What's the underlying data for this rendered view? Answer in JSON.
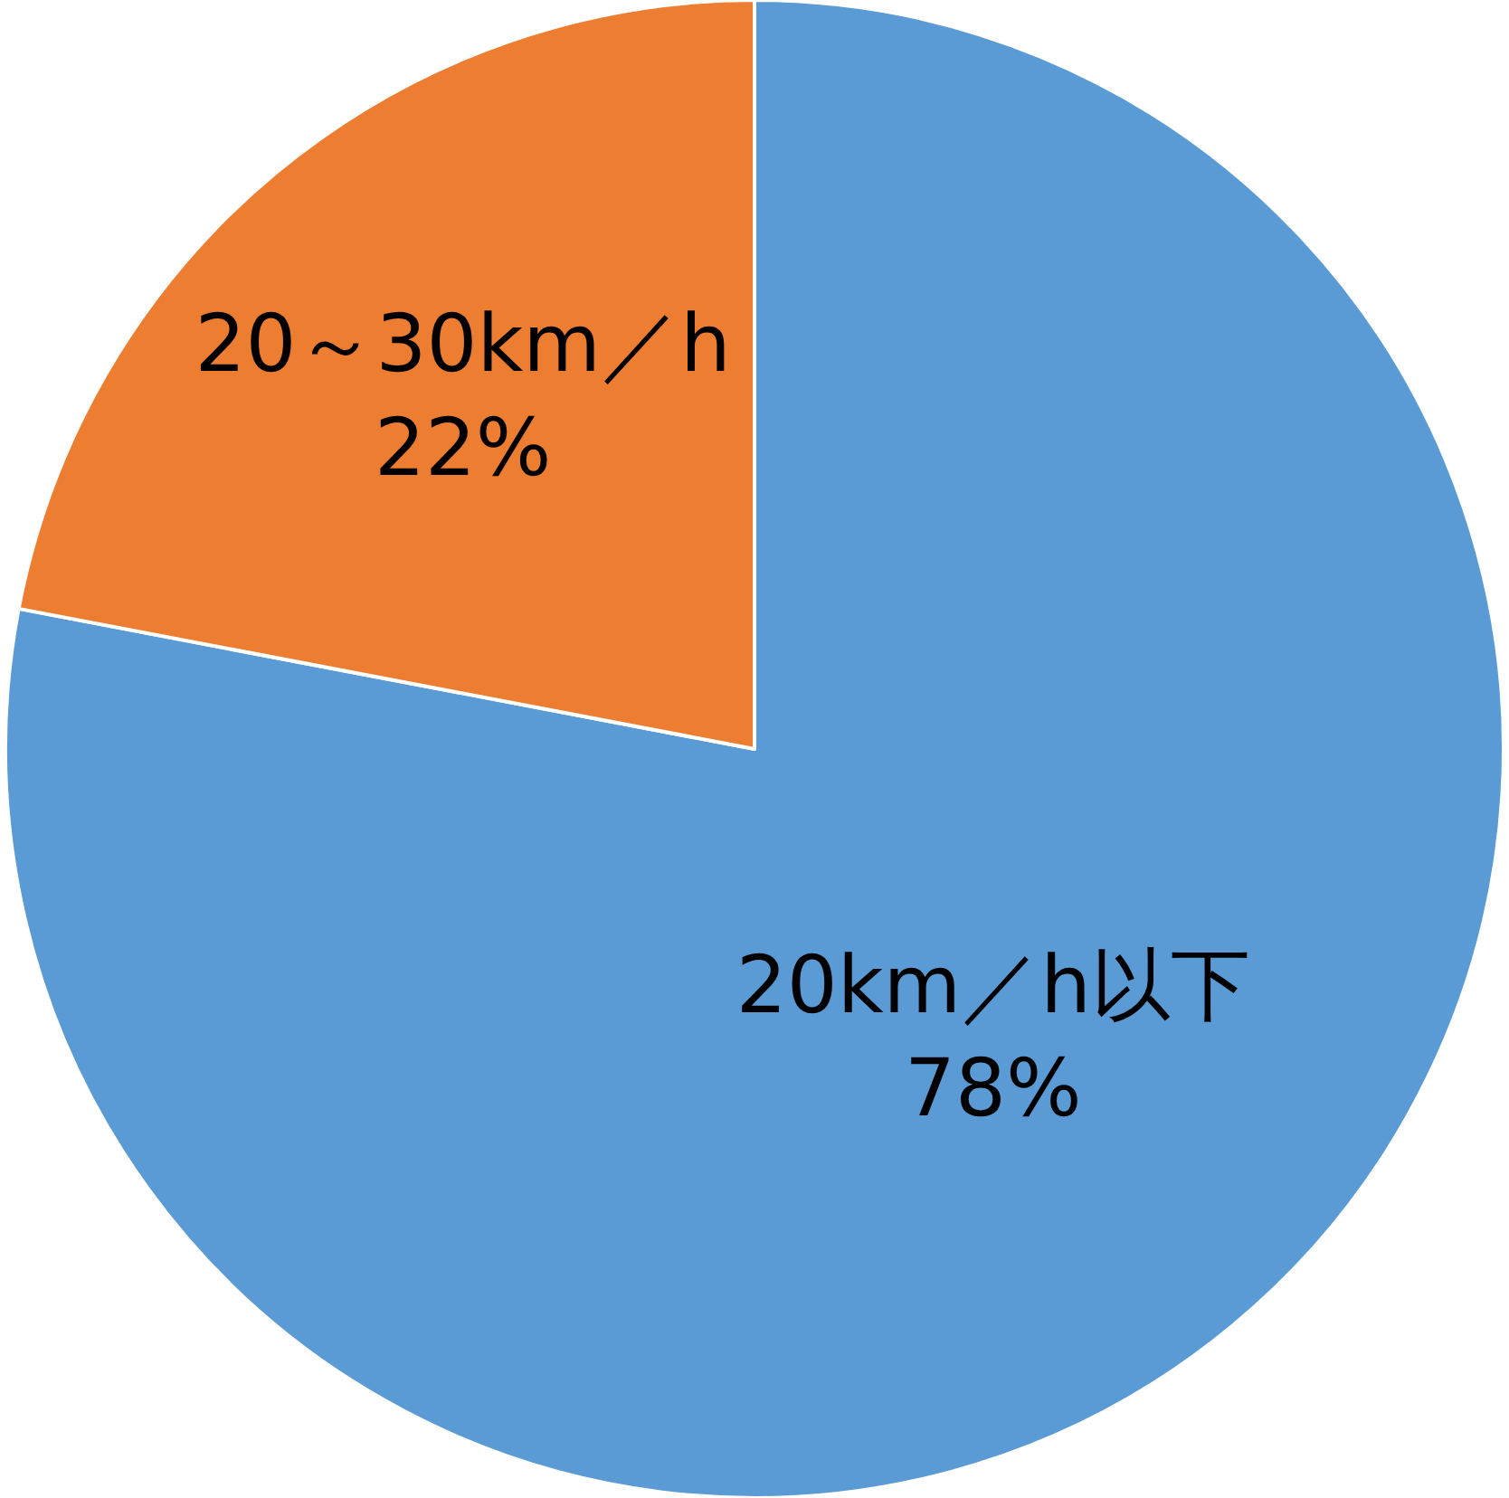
{
  "chart_data": {
    "type": "pie",
    "categories": [
      "20km／h以下",
      "20～30km／h"
    ],
    "values": [
      78,
      22
    ],
    "value_labels": [
      "78%",
      "22%"
    ],
    "colors": [
      "#5b9bd5",
      "#ed7d31"
    ],
    "legend": false
  }
}
